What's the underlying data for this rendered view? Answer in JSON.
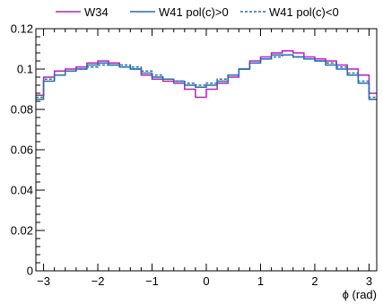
{
  "chart_data": {
    "type": "line",
    "xlabel": "ϕ (rad)",
    "ylabel": "",
    "xlim": [
      -3.1416,
      3.1416
    ],
    "ylim": [
      0,
      0.12
    ],
    "x_ticks": [
      -3,
      -2,
      -1,
      0,
      1,
      2,
      3
    ],
    "x_tick_labels": [
      "−3",
      "−2",
      "−1",
      "0",
      "1",
      "2",
      "3"
    ],
    "y_ticks": [
      0,
      0.02,
      0.04,
      0.06,
      0.08,
      0.1,
      0.12
    ],
    "y_tick_labels": [
      "0",
      "0.02",
      "0.04",
      "0.06",
      "0.08",
      "0.1",
      "0.12"
    ],
    "grid": false,
    "legend_position": "top",
    "histogram_step": true,
    "series": [
      {
        "name": "W34",
        "color": "#c21bc2",
        "dash": "solid",
        "x": [
          -3.1,
          -2.9,
          -2.7,
          -2.5,
          -2.3,
          -2.1,
          -1.9,
          -1.7,
          -1.5,
          -1.3,
          -1.1,
          -0.9,
          -0.7,
          -0.5,
          -0.3,
          -0.1,
          0.1,
          0.3,
          0.5,
          0.7,
          0.9,
          1.1,
          1.3,
          1.5,
          1.7,
          1.9,
          2.1,
          2.3,
          2.5,
          2.7,
          2.9,
          3.1
        ],
        "values": [
          0.087,
          0.096,
          0.099,
          0.1,
          0.101,
          0.103,
          0.104,
          0.103,
          0.101,
          0.1,
          0.097,
          0.095,
          0.094,
          0.093,
          0.09,
          0.086,
          0.09,
          0.093,
          0.096,
          0.1,
          0.104,
          0.106,
          0.108,
          0.109,
          0.108,
          0.106,
          0.105,
          0.104,
          0.102,
          0.1,
          0.097,
          0.088
        ]
      },
      {
        "name": "W41 pol(c)>0",
        "color": "#1f6fb4",
        "dash": "solid",
        "x": [
          -3.1,
          -2.9,
          -2.7,
          -2.5,
          -2.3,
          -2.1,
          -1.9,
          -1.7,
          -1.5,
          -1.3,
          -1.1,
          -0.9,
          -0.7,
          -0.5,
          -0.3,
          -0.1,
          0.1,
          0.3,
          0.5,
          0.7,
          0.9,
          1.1,
          1.3,
          1.5,
          1.7,
          1.9,
          2.1,
          2.3,
          2.5,
          2.7,
          2.9,
          3.1
        ],
        "values": [
          0.085,
          0.094,
          0.097,
          0.099,
          0.1,
          0.102,
          0.103,
          0.102,
          0.101,
          0.1,
          0.098,
          0.096,
          0.095,
          0.094,
          0.092,
          0.091,
          0.092,
          0.094,
          0.097,
          0.1,
          0.103,
          0.105,
          0.107,
          0.107,
          0.106,
          0.105,
          0.104,
          0.102,
          0.1,
          0.097,
          0.093,
          0.085
        ]
      },
      {
        "name": "W41 pol(c)<0",
        "color": "#1f6fb4",
        "dash": "dotted",
        "x": [
          -3.1,
          -2.9,
          -2.7,
          -2.5,
          -2.3,
          -2.1,
          -1.9,
          -1.7,
          -1.5,
          -1.3,
          -1.1,
          -0.9,
          -0.7,
          -0.5,
          -0.3,
          -0.1,
          0.1,
          0.3,
          0.5,
          0.7,
          0.9,
          1.1,
          1.3,
          1.5,
          1.7,
          1.9,
          2.1,
          2.3,
          2.5,
          2.7,
          2.9,
          3.1
        ],
        "values": [
          0.086,
          0.095,
          0.097,
          0.099,
          0.1,
          0.101,
          0.102,
          0.102,
          0.102,
          0.101,
          0.099,
          0.097,
          0.095,
          0.094,
          0.093,
          0.092,
          0.093,
          0.095,
          0.097,
          0.1,
          0.103,
          0.105,
          0.106,
          0.107,
          0.106,
          0.105,
          0.104,
          0.103,
          0.101,
          0.098,
          0.094,
          0.086
        ]
      }
    ]
  }
}
